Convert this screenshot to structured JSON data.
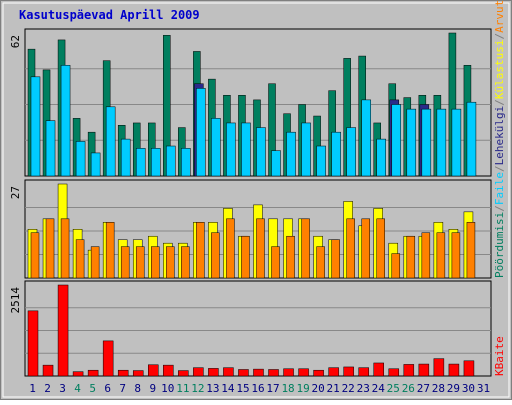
{
  "chart_data": {
    "type": "bar",
    "title": "Kasutuspäevad Aprill 2009",
    "categories": [
      "1",
      "2",
      "3",
      "4",
      "5",
      "6",
      "7",
      "8",
      "9",
      "10",
      "11",
      "12",
      "13",
      "14",
      "15",
      "16",
      "17",
      "18",
      "19",
      "20",
      "21",
      "22",
      "23",
      "24",
      "25",
      "26",
      "27",
      "28",
      "29",
      "30",
      "31"
    ],
    "weekend_days": [
      4,
      5,
      11,
      12,
      18,
      19,
      25,
      26
    ],
    "panels": [
      {
        "id": "top",
        "max_label": "62",
        "ymax": 62,
        "series": [
          {
            "name": "Pöördumisi",
            "color": "#007f5f",
            "values": [
              55,
              46,
              59,
              25,
              19,
              50,
              22,
              23,
              23,
              61,
              21,
              54,
              42,
              35,
              35,
              33,
              40,
              27,
              31,
              26,
              37,
              51,
              52,
              23,
              40,
              34,
              35,
              35,
              62,
              48,
              null
            ]
          },
          {
            "name": "Faile",
            "color": "#00ccff",
            "values": [
              43,
              24,
              48,
              15,
              10,
              30,
              16,
              12,
              12,
              13,
              12,
              38,
              25,
              23,
              23,
              21,
              11,
              19,
              23,
              13,
              19,
              21,
              33,
              16,
              31,
              29,
              29,
              29,
              29,
              32,
              null
            ]
          },
          {
            "name": "Lehekülgi",
            "color": "#2a2a8a",
            "values": [
              0,
              0,
              0,
              0,
              0,
              0,
              0,
              0,
              0,
              0,
              0,
              40,
              0,
              0,
              0,
              0,
              0,
              0,
              0,
              0,
              0,
              0,
              0,
              0,
              33,
              0,
              31,
              0,
              0,
              0,
              null
            ]
          }
        ]
      },
      {
        "id": "middle",
        "max_label": "27",
        "ymax": 27,
        "series": [
          {
            "name": "Külastusi",
            "color": "#ffff00",
            "values": [
              14,
              17,
              27,
              14,
              8,
              16,
              11,
              11,
              12,
              10,
              10,
              16,
              16,
              20,
              12,
              21,
              17,
              17,
              17,
              12,
              11,
              22,
              15,
              20,
              10,
              12,
              12,
              16,
              14,
              19,
              null
            ]
          },
          {
            "name": "Arvuteid",
            "color": "#ff8000",
            "values": [
              13,
              17,
              17,
              11,
              9,
              16,
              9,
              9,
              9,
              9,
              9,
              16,
              13,
              17,
              12,
              17,
              9,
              12,
              17,
              9,
              11,
              17,
              17,
              17,
              7,
              12,
              13,
              13,
              13,
              16,
              null
            ]
          }
        ]
      },
      {
        "id": "bottom",
        "max_label": "2514",
        "ymax": 2514,
        "series": [
          {
            "name": "KBaite",
            "color": "#ff0000",
            "values": [
              1800,
              300,
              2514,
              120,
              160,
              970,
              160,
              150,
              310,
              300,
              150,
              230,
              210,
              230,
              180,
              190,
              180,
              200,
              200,
              160,
              230,
              250,
              230,
              360,
              200,
              320,
              330,
              480,
              330,
              420,
              null
            ]
          }
        ]
      }
    ],
    "x_labels_color_weekday": "#000080",
    "x_labels_color_weekend": "#007f5f",
    "title_color": "#0000cc",
    "panel_bg": "#c0c0c0",
    "legend_right": [
      {
        "text": "Pöördumisi",
        "color": "#007f5f"
      },
      {
        "text": "/",
        "color": "#7f7f7f"
      },
      {
        "text": "Faile",
        "color": "#00ccff"
      },
      {
        "text": "/",
        "color": "#7f7f7f"
      },
      {
        "text": "Lehekülgi",
        "color": "#2a2a8a"
      },
      {
        "text": "/",
        "color": "#7f7f7f"
      },
      {
        "text": "Külastusi",
        "color": "#ffff00"
      },
      {
        "text": "/",
        "color": "#7f7f7f"
      },
      {
        "text": "Arvuteid",
        "color": "#ff8000"
      },
      {
        "text": "KBaite",
        "color": "#ff0000"
      }
    ]
  }
}
